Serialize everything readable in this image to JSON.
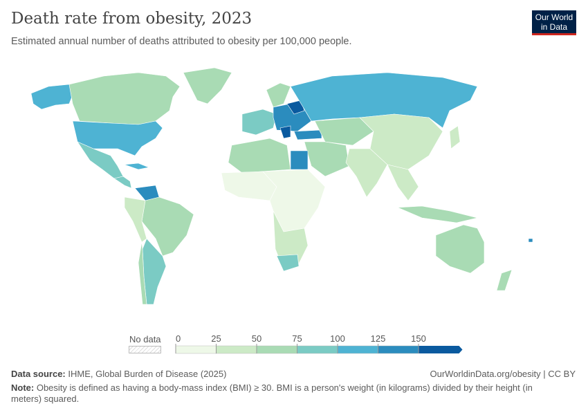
{
  "header": {
    "title": "Death rate from obesity, 2023",
    "subtitle": "Estimated annual number of deaths attributed to obesity per 100,000 people.",
    "logo_line1": "Our World",
    "logo_line2": "in Data"
  },
  "legend": {
    "no_data_label": "No data",
    "ticks": [
      "0",
      "25",
      "50",
      "75",
      "100",
      "125",
      "150"
    ],
    "bins": [
      {
        "from": 0,
        "to": 25,
        "color": "#eef8e8"
      },
      {
        "from": 25,
        "to": 50,
        "color": "#cceac6"
      },
      {
        "from": 50,
        "to": 75,
        "color": "#a9dbb4"
      },
      {
        "from": 75,
        "to": 100,
        "color": "#7bcbc4"
      },
      {
        "from": 100,
        "to": 125,
        "color": "#4eb3d3"
      },
      {
        "from": 125,
        "to": 150,
        "color": "#2b8cbe"
      },
      {
        "from": 150,
        "to": null,
        "color": "#0a5a9f"
      }
    ]
  },
  "footer": {
    "source_label": "Data source:",
    "source_text": "IHME, Global Burden of Disease (2025)",
    "url": "OurWorldinData.org/obesity | CC BY",
    "note_label": "Note:",
    "note_text": "Obesity is defined as having a body-mass index (BMI) ≥ 30. BMI is a person's weight (in kilograms) divided by their height (in meters) squared."
  }
}
